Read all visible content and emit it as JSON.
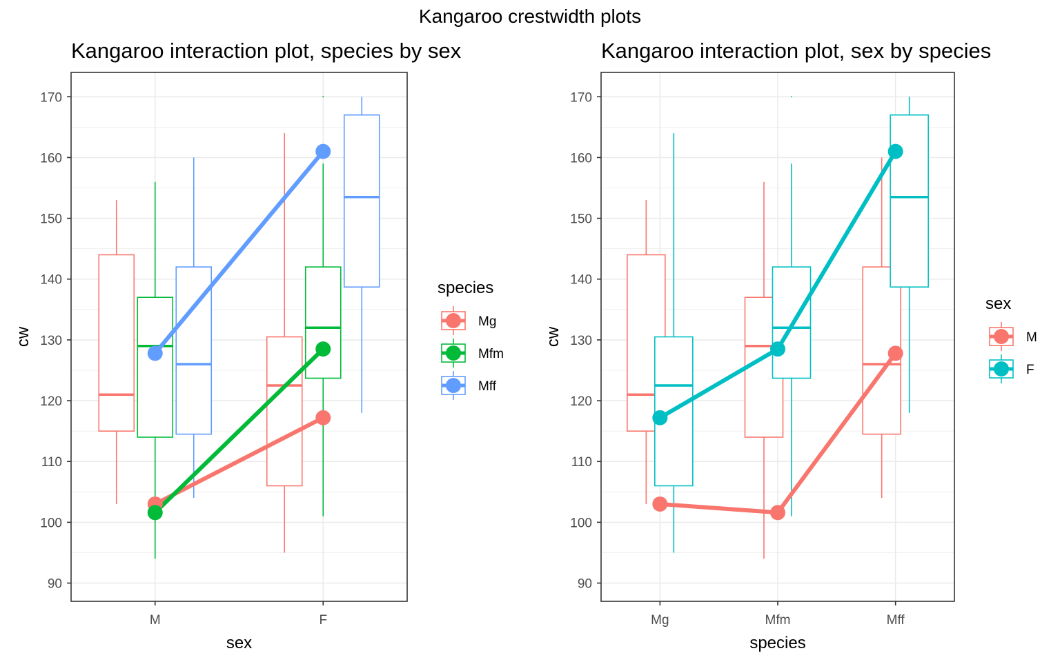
{
  "page_title": "Kangaroo crestwidth plots",
  "colors": {
    "Mg": "#F8766D",
    "Mfm": "#00BA38",
    "Mff": "#619CFF",
    "M": "#F8766D",
    "F": "#00BFC4"
  },
  "chart_data": [
    {
      "type": "box",
      "title": "Kangaroo interaction plot, species by sex",
      "xlabel": "sex",
      "ylabel": "cw",
      "categories": [
        "M",
        "F"
      ],
      "yticks": [
        90,
        100,
        110,
        120,
        130,
        140,
        150,
        160,
        170
      ],
      "ylim": [
        87,
        174
      ],
      "grid": true,
      "legend": {
        "title": "species",
        "position": "right",
        "items": [
          "Mg",
          "Mfm",
          "Mff"
        ]
      },
      "group_key": "species",
      "groups": [
        "Mg",
        "Mfm",
        "Mff"
      ],
      "boxes": [
        {
          "x": "M",
          "group": "Mg",
          "whisker_low": 103,
          "q1": 115,
          "median": 121,
          "q3": 144,
          "whisker_high": 153
        },
        {
          "x": "M",
          "group": "Mfm",
          "whisker_low": 94,
          "q1": 114,
          "median": 129,
          "q3": 137,
          "whisker_high": 156
        },
        {
          "x": "M",
          "group": "Mff",
          "whisker_low": 104,
          "q1": 114.5,
          "median": 126,
          "q3": 142,
          "whisker_high": 160
        },
        {
          "x": "F",
          "group": "Mg",
          "whisker_low": 95,
          "q1": 106,
          "median": 122.5,
          "q3": 130.5,
          "whisker_high": 164
        },
        {
          "x": "F",
          "group": "Mfm",
          "whisker_low": 101,
          "q1": 123.7,
          "median": 132,
          "q3": 142,
          "whisker_high": 159,
          "outliers": [
            170
          ]
        },
        {
          "x": "F",
          "group": "Mff",
          "whisker_low": 118,
          "q1": 138.7,
          "median": 153.5,
          "q3": 167,
          "whisker_high": 170
        }
      ],
      "series": [
        {
          "name": "Mg",
          "x": [
            "M",
            "F"
          ],
          "values": [
            103,
            117.2
          ]
        },
        {
          "name": "Mfm",
          "x": [
            "M",
            "F"
          ],
          "values": [
            101.6,
            128.5
          ]
        },
        {
          "name": "Mff",
          "x": [
            "M",
            "F"
          ],
          "values": [
            127.8,
            161
          ]
        }
      ]
    },
    {
      "type": "box",
      "title": "Kangaroo interaction plot, sex by species",
      "xlabel": "species",
      "ylabel": "cw",
      "categories": [
        "Mg",
        "Mfm",
        "Mff"
      ],
      "yticks": [
        90,
        100,
        110,
        120,
        130,
        140,
        150,
        160,
        170
      ],
      "ylim": [
        87,
        174
      ],
      "grid": true,
      "legend": {
        "title": "sex",
        "position": "right",
        "items": [
          "M",
          "F"
        ]
      },
      "group_key": "sex",
      "groups": [
        "M",
        "F"
      ],
      "boxes": [
        {
          "x": "Mg",
          "group": "M",
          "whisker_low": 103,
          "q1": 115,
          "median": 121,
          "q3": 144,
          "whisker_high": 153
        },
        {
          "x": "Mg",
          "group": "F",
          "whisker_low": 95,
          "q1": 106,
          "median": 122.5,
          "q3": 130.5,
          "whisker_high": 164
        },
        {
          "x": "Mfm",
          "group": "M",
          "whisker_low": 94,
          "q1": 114,
          "median": 129,
          "q3": 137,
          "whisker_high": 156
        },
        {
          "x": "Mfm",
          "group": "F",
          "whisker_low": 101,
          "q1": 123.7,
          "median": 132,
          "q3": 142,
          "whisker_high": 159,
          "outliers": [
            170
          ]
        },
        {
          "x": "Mff",
          "group": "M",
          "whisker_low": 104,
          "q1": 114.5,
          "median": 126,
          "q3": 142,
          "whisker_high": 160
        },
        {
          "x": "Mff",
          "group": "F",
          "whisker_low": 118,
          "q1": 138.7,
          "median": 153.5,
          "q3": 167,
          "whisker_high": 170
        }
      ],
      "series": [
        {
          "name": "M",
          "x": [
            "Mg",
            "Mfm",
            "Mff"
          ],
          "values": [
            103,
            101.6,
            127.8
          ]
        },
        {
          "name": "F",
          "x": [
            "Mg",
            "Mfm",
            "Mff"
          ],
          "values": [
            117.2,
            128.5,
            161
          ]
        }
      ]
    }
  ]
}
